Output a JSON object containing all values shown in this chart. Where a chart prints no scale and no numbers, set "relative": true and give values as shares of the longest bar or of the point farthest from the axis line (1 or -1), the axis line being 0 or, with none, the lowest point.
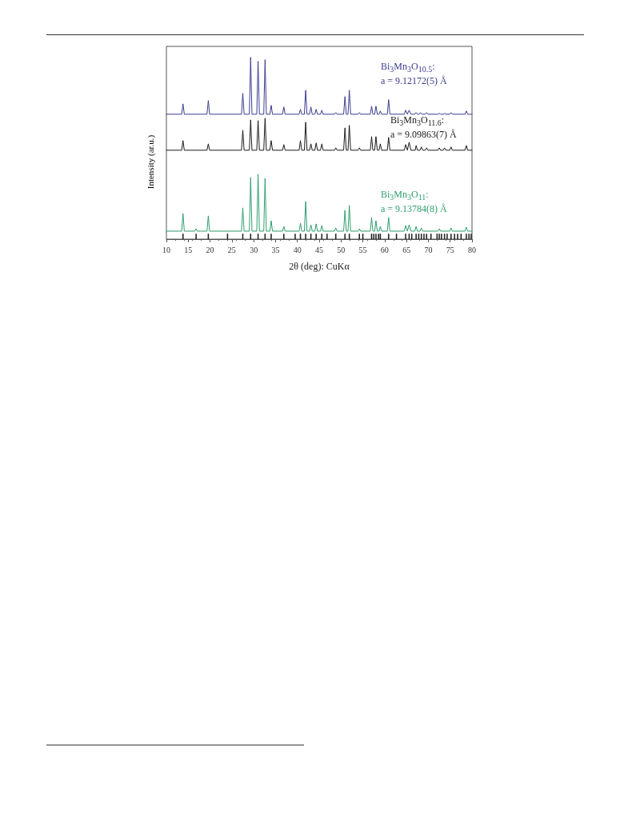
{
  "chart_data": {
    "type": "line",
    "relative": true,
    "xlabel": "2θ (deg): CuKα",
    "ylabel": "Intensity (ar.u.)",
    "xlim": [
      10,
      80
    ],
    "xticks": [
      10,
      15,
      20,
      25,
      30,
      35,
      40,
      45,
      50,
      55,
      60,
      65,
      70,
      75,
      80
    ],
    "grid": false,
    "legend": false,
    "series": [
      {
        "name": "Bi$_{3}$Mn$_{3}$O$_{10.5}$:",
        "color": "#3b3b8f",
        "x": [
          10,
          13.5,
          13.8,
          14.1,
          19.3,
          19.6,
          19.9,
          27.2,
          27.5,
          27.8,
          29.0,
          29.3,
          29.6,
          30.7,
          31.0,
          31.3,
          32.3,
          32.6,
          32.9,
          33.7,
          34.0,
          34.3,
          36.6,
          36.9,
          37.2,
          40.4,
          40.7,
          41.0,
          41.6,
          41.9,
          42.2,
          42.8,
          43.1,
          43.4,
          44.0,
          44.3,
          44.6,
          45.3,
          45.6,
          45.9,
          48.5,
          48.8,
          49.1,
          50.6,
          50.9,
          51.2,
          51.6,
          51.9,
          52.2,
          53.9,
          54.2,
          54.5,
          56.7,
          57.0,
          57.3,
          57.7,
          58.0,
          58.3,
          58.7,
          59.0,
          59.3,
          60.6,
          60.9,
          61.2,
          64.5,
          64.8,
          65.2,
          65.6,
          66.0,
          66.9,
          67.2,
          67.5,
          67.9,
          68.2,
          68.5,
          69.3,
          69.6,
          69.9,
          72.2,
          72.5,
          72.8,
          73.4,
          73.7,
          74.0,
          74.9,
          75.2,
          75.5,
          78.4,
          78.7,
          79.0,
          80
        ],
        "values": [
          0.687,
          0.687,
          0.744,
          0.687,
          0.687,
          0.762,
          0.687,
          0.687,
          0.802,
          0.687,
          0.687,
          1,
          0.687,
          0.687,
          0.978,
          0.687,
          0.687,
          0.987,
          0.687,
          0.687,
          0.736,
          0.687,
          0.687,
          0.727,
          0.687,
          0.687,
          0.714,
          0.687,
          0.687,
          0.819,
          0.687,
          0.687,
          0.727,
          0.687,
          0.687,
          0.714,
          0.687,
          0.687,
          0.709,
          0.687,
          0.687,
          0.696,
          0.687,
          0.687,
          0.784,
          0.687,
          0.687,
          0.819,
          0.687,
          0.687,
          0.696,
          0.687,
          0.687,
          0.731,
          0.687,
          0.687,
          0.731,
          0.687,
          0.687,
          0.705,
          0.687,
          0.687,
          0.767,
          0.687,
          0.687,
          0.709,
          0.687,
          0.709,
          0.687,
          0.687,
          0.696,
          0.687,
          0.687,
          0.696,
          0.687,
          0.687,
          0.696,
          0.687,
          0.687,
          0.692,
          0.687,
          0.687,
          0.692,
          0.687,
          0.687,
          0.696,
          0.687,
          0.687,
          0.705,
          0.687,
          0.687
        ]
      },
      {
        "name": "Bi$_{3}$Mn$_{3}$O$_{11.6}$:",
        "color": "#1a1a1a",
        "x": [
          10,
          13.5,
          13.8,
          14.1,
          19.3,
          19.6,
          19.9,
          27.2,
          27.5,
          27.8,
          29.0,
          29.3,
          29.6,
          30.7,
          31.0,
          31.3,
          32.3,
          32.6,
          32.9,
          33.7,
          34.0,
          34.3,
          36.6,
          36.9,
          37.2,
          40.4,
          40.7,
          41.0,
          41.6,
          41.9,
          42.2,
          42.8,
          43.1,
          43.4,
          44.0,
          44.3,
          44.6,
          45.3,
          45.6,
          45.9,
          48.5,
          48.8,
          49.1,
          50.6,
          50.9,
          51.2,
          51.6,
          51.9,
          52.2,
          53.9,
          54.2,
          54.5,
          56.7,
          57.0,
          57.3,
          57.7,
          58.0,
          58.3,
          58.7,
          59.0,
          59.3,
          60.6,
          60.9,
          61.2,
          64.5,
          64.8,
          65.2,
          65.6,
          66.0,
          67.0,
          67.2,
          67.5,
          68.1,
          68.4,
          68.7,
          69.3,
          69.6,
          69.9,
          72.2,
          72.5,
          72.8,
          73.4,
          73.7,
          74.0,
          74.9,
          75.2,
          75.5,
          78.4,
          78.7,
          79.0,
          80
        ],
        "values": [
          0.489,
          0.489,
          0.542,
          0.489,
          0.489,
          0.524,
          0.489,
          0.489,
          0.599,
          0.489,
          0.489,
          0.656,
          0.489,
          0.489,
          0.652,
          0.489,
          0.489,
          0.665,
          0.489,
          0.489,
          0.542,
          0.489,
          0.489,
          0.52,
          0.489,
          0.489,
          0.542,
          0.489,
          0.489,
          0.643,
          0.489,
          0.489,
          0.524,
          0.489,
          0.489,
          0.529,
          0.489,
          0.489,
          0.524,
          0.489,
          0.489,
          0.502,
          0.489,
          0.489,
          0.612,
          0.489,
          0.489,
          0.626,
          0.489,
          0.489,
          0.502,
          0.489,
          0.489,
          0.564,
          0.489,
          0.489,
          0.564,
          0.489,
          0.489,
          0.524,
          0.489,
          0.489,
          0.56,
          0.489,
          0.489,
          0.52,
          0.489,
          0.533,
          0.489,
          0.489,
          0.515,
          0.489,
          0.489,
          0.507,
          0.489,
          0.489,
          0.502,
          0.489,
          0.489,
          0.502,
          0.489,
          0.489,
          0.502,
          0.489,
          0.489,
          0.507,
          0.489,
          0.489,
          0.515,
          0.489,
          0.489
        ]
      },
      {
        "name": "Bi$_{3}$Mn$_{3}$O$_{11}$:",
        "color": "#2e9e6e",
        "x": [
          10,
          13.5,
          13.8,
          14.1,
          16.5,
          16.8,
          17.1,
          19.3,
          19.6,
          19.9,
          27.2,
          27.5,
          27.8,
          29.0,
          29.3,
          29.6,
          30.7,
          31.0,
          31.3,
          32.3,
          32.6,
          32.9,
          33.7,
          34.0,
          34.3,
          36.6,
          36.9,
          37.2,
          40.4,
          40.7,
          41.0,
          41.6,
          41.9,
          42.2,
          42.8,
          43.1,
          43.4,
          44.0,
          44.3,
          44.6,
          45.3,
          45.6,
          45.9,
          48.5,
          48.8,
          49.1,
          50.6,
          50.9,
          51.2,
          51.6,
          51.9,
          52.2,
          53.9,
          54.2,
          54.5,
          56.7,
          57.0,
          57.3,
          57.7,
          58.0,
          58.3,
          58.7,
          59.0,
          59.3,
          60.6,
          60.9,
          61.2,
          64.5,
          64.8,
          65.2,
          65.6,
          66.0,
          66.9,
          67.2,
          67.5,
          68.1,
          68.4,
          68.7,
          72.2,
          72.5,
          72.8,
          74.9,
          75.2,
          75.5,
          78.4,
          78.7,
          79.0,
          80
        ],
        "values": [
          0.044,
          0.044,
          0.141,
          0.044,
          0.044,
          0.057,
          0.044,
          0.044,
          0.128,
          0.044,
          0.044,
          0.172,
          0.044,
          0.044,
          0.339,
          0.044,
          0.044,
          0.357,
          0.044,
          0.044,
          0.335,
          0.044,
          0.044,
          0.101,
          0.044,
          0.044,
          0.07,
          0.044,
          0.044,
          0.088,
          0.044,
          0.044,
          0.207,
          0.044,
          0.044,
          0.079,
          0.044,
          0.044,
          0.084,
          0.044,
          0.044,
          0.075,
          0.044,
          0.044,
          0.062,
          0.044,
          0.044,
          0.159,
          0.044,
          0.044,
          0.185,
          0.044,
          0.044,
          0.057,
          0.044,
          0.044,
          0.119,
          0.044,
          0.044,
          0.101,
          0.044,
          0.044,
          0.07,
          0.044,
          0.044,
          0.119,
          0.044,
          0.044,
          0.075,
          0.044,
          0.079,
          0.044,
          0.044,
          0.07,
          0.044,
          0.044,
          0.062,
          0.044,
          0.044,
          0.057,
          0.044,
          0.044,
          0.062,
          0.044,
          0.044,
          0.066,
          0.044,
          0.044
        ]
      },
      {
        "type": "bar",
        "color": "#1a1a1a",
        "x": [
          13.8,
          16.8,
          19.6,
          24.0,
          27.5,
          29.3,
          31.0,
          32.6,
          34.0,
          36.9,
          39.5,
          40.7,
          41.9,
          43.1,
          44.3,
          45.6,
          46.8,
          48.8,
          50.9,
          51.9,
          54.2,
          55.0,
          57.0,
          57.5,
          58.0,
          58.6,
          59.0,
          60.9,
          62.7,
          64.8,
          65.6,
          66.2,
          67.2,
          67.8,
          68.4,
          69.0,
          69.6,
          70.6,
          72.0,
          72.5,
          73.0,
          73.7,
          74.3,
          75.2,
          76.0,
          76.7,
          77.5,
          78.7,
          79.3,
          79.8
        ],
        "values": [
          0.03,
          0.03,
          0.03,
          0.03,
          0.03,
          0.03,
          0.03,
          0.03,
          0.03,
          0.03,
          0.03,
          0.03,
          0.03,
          0.03,
          0.03,
          0.03,
          0.03,
          0.03,
          0.03,
          0.03,
          0.03,
          0.03,
          0.03,
          0.03,
          0.03,
          0.03,
          0.03,
          0.03,
          0.03,
          0.03,
          0.03,
          0.03,
          0.03,
          0.03,
          0.03,
          0.03,
          0.03,
          0.03,
          0.03,
          0.03,
          0.03,
          0.03,
          0.03,
          0.03,
          0.03,
          0.03,
          0.03,
          0.03,
          0.03,
          0.03
        ]
      }
    ],
    "annotations": [
      "a = 9.12172(5) Å",
      "a = 9.09863(7) Å",
      "a = 9.13784(8) Å"
    ]
  }
}
